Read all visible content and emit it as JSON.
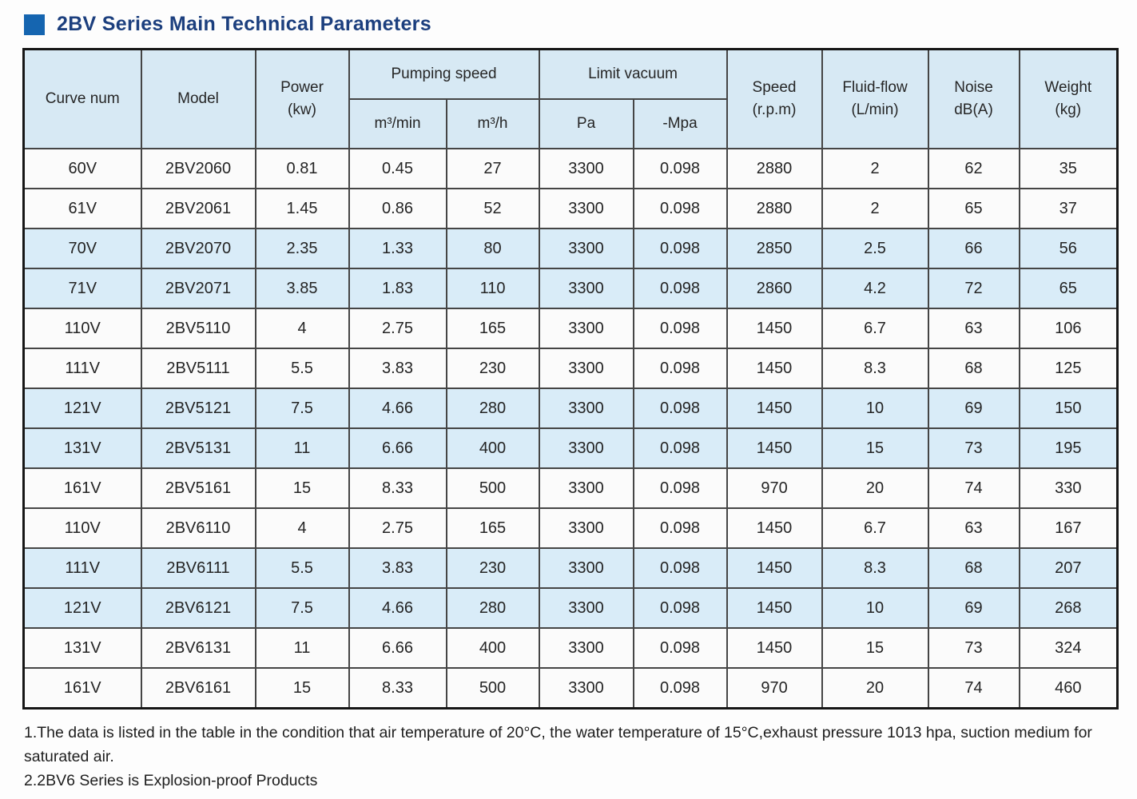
{
  "title": {
    "text": "2BV Series Main Technical Parameters",
    "bullet_color": "#1565b0"
  },
  "table": {
    "headers": {
      "curve_num": "Curve num",
      "model": "Model",
      "power_l1": "Power",
      "power_l2": "(kw)",
      "pumping_speed": "Pumping speed",
      "m3min": "m³/min",
      "m3h": "m³/h",
      "limit_vacuum": "Limit vacuum",
      "pa": "Pa",
      "mpa": "-Mpa",
      "speed_l1": "Speed",
      "speed_l2": "(r.p.m)",
      "fluid_l1": "Fluid-flow",
      "fluid_l2": "(L/min)",
      "noise_l1": "Noise",
      "noise_l2": "dB(A)",
      "weight_l1": "Weight",
      "weight_l2": "(kg)"
    },
    "column_keys": [
      "curve",
      "model",
      "power",
      "m3min",
      "m3h",
      "pa",
      "mpa",
      "speed",
      "fluid",
      "noise",
      "weight"
    ],
    "rows": [
      {
        "curve": "60V",
        "model": "2BV2060",
        "power": "0.81",
        "m3min": "0.45",
        "m3h": "27",
        "pa": "3300",
        "mpa": "0.098",
        "speed": "2880",
        "fluid": "2",
        "noise": "62",
        "weight": "35",
        "highlight": false
      },
      {
        "curve": "61V",
        "model": "2BV2061",
        "power": "1.45",
        "m3min": "0.86",
        "m3h": "52",
        "pa": "3300",
        "mpa": "0.098",
        "speed": "2880",
        "fluid": "2",
        "noise": "65",
        "weight": "37",
        "highlight": false
      },
      {
        "curve": "70V",
        "model": "2BV2070",
        "power": "2.35",
        "m3min": "1.33",
        "m3h": "80",
        "pa": "3300",
        "mpa": "0.098",
        "speed": "2850",
        "fluid": "2.5",
        "noise": "66",
        "weight": "56",
        "highlight": true
      },
      {
        "curve": "71V",
        "model": "2BV2071",
        "power": "3.85",
        "m3min": "1.83",
        "m3h": "110",
        "pa": "3300",
        "mpa": "0.098",
        "speed": "2860",
        "fluid": "4.2",
        "noise": "72",
        "weight": "65",
        "highlight": true
      },
      {
        "curve": "110V",
        "model": "2BV5110",
        "power": "4",
        "m3min": "2.75",
        "m3h": "165",
        "pa": "3300",
        "mpa": "0.098",
        "speed": "1450",
        "fluid": "6.7",
        "noise": "63",
        "weight": "106",
        "highlight": false
      },
      {
        "curve": "111V",
        "model": "2BV5111",
        "power": "5.5",
        "m3min": "3.83",
        "m3h": "230",
        "pa": "3300",
        "mpa": "0.098",
        "speed": "1450",
        "fluid": "8.3",
        "noise": "68",
        "weight": "125",
        "highlight": false
      },
      {
        "curve": "121V",
        "model": "2BV5121",
        "power": "7.5",
        "m3min": "4.66",
        "m3h": "280",
        "pa": "3300",
        "mpa": "0.098",
        "speed": "1450",
        "fluid": "10",
        "noise": "69",
        "weight": "150",
        "highlight": true
      },
      {
        "curve": "131V",
        "model": "2BV5131",
        "power": "11",
        "m3min": "6.66",
        "m3h": "400",
        "pa": "3300",
        "mpa": "0.098",
        "speed": "1450",
        "fluid": "15",
        "noise": "73",
        "weight": "195",
        "highlight": true
      },
      {
        "curve": "161V",
        "model": "2BV5161",
        "power": "15",
        "m3min": "8.33",
        "m3h": "500",
        "pa": "3300",
        "mpa": "0.098",
        "speed": "970",
        "fluid": "20",
        "noise": "74",
        "weight": "330",
        "highlight": false
      },
      {
        "curve": "110V",
        "model": "2BV6110",
        "power": "4",
        "m3min": "2.75",
        "m3h": "165",
        "pa": "3300",
        "mpa": "0.098",
        "speed": "1450",
        "fluid": "6.7",
        "noise": "63",
        "weight": "167",
        "highlight": false
      },
      {
        "curve": "111V",
        "model": "2BV6111",
        "power": "5.5",
        "m3min": "3.83",
        "m3h": "230",
        "pa": "3300",
        "mpa": "0.098",
        "speed": "1450",
        "fluid": "8.3",
        "noise": "68",
        "weight": "207",
        "highlight": true
      },
      {
        "curve": "121V",
        "model": "2BV6121",
        "power": "7.5",
        "m3min": "4.66",
        "m3h": "280",
        "pa": "3300",
        "mpa": "0.098",
        "speed": "1450",
        "fluid": "10",
        "noise": "69",
        "weight": "268",
        "highlight": true
      },
      {
        "curve": "131V",
        "model": "2BV6131",
        "power": "11",
        "m3min": "6.66",
        "m3h": "400",
        "pa": "3300",
        "mpa": "0.098",
        "speed": "1450",
        "fluid": "15",
        "noise": "73",
        "weight": "324",
        "highlight": false
      },
      {
        "curve": "161V",
        "model": "2BV6161",
        "power": "15",
        "m3min": "8.33",
        "m3h": "500",
        "pa": "3300",
        "mpa": "0.098",
        "speed": "970",
        "fluid": "20",
        "noise": "74",
        "weight": "460",
        "highlight": false
      }
    ]
  },
  "notes": [
    "1.The data is listed in the table in the condition that air temperature of 20°C, the water temperature of 15°C,exhaust pressure 1013 hpa, suction medium for saturated air.",
    "2.2BV6 Series is Explosion-proof Products"
  ]
}
